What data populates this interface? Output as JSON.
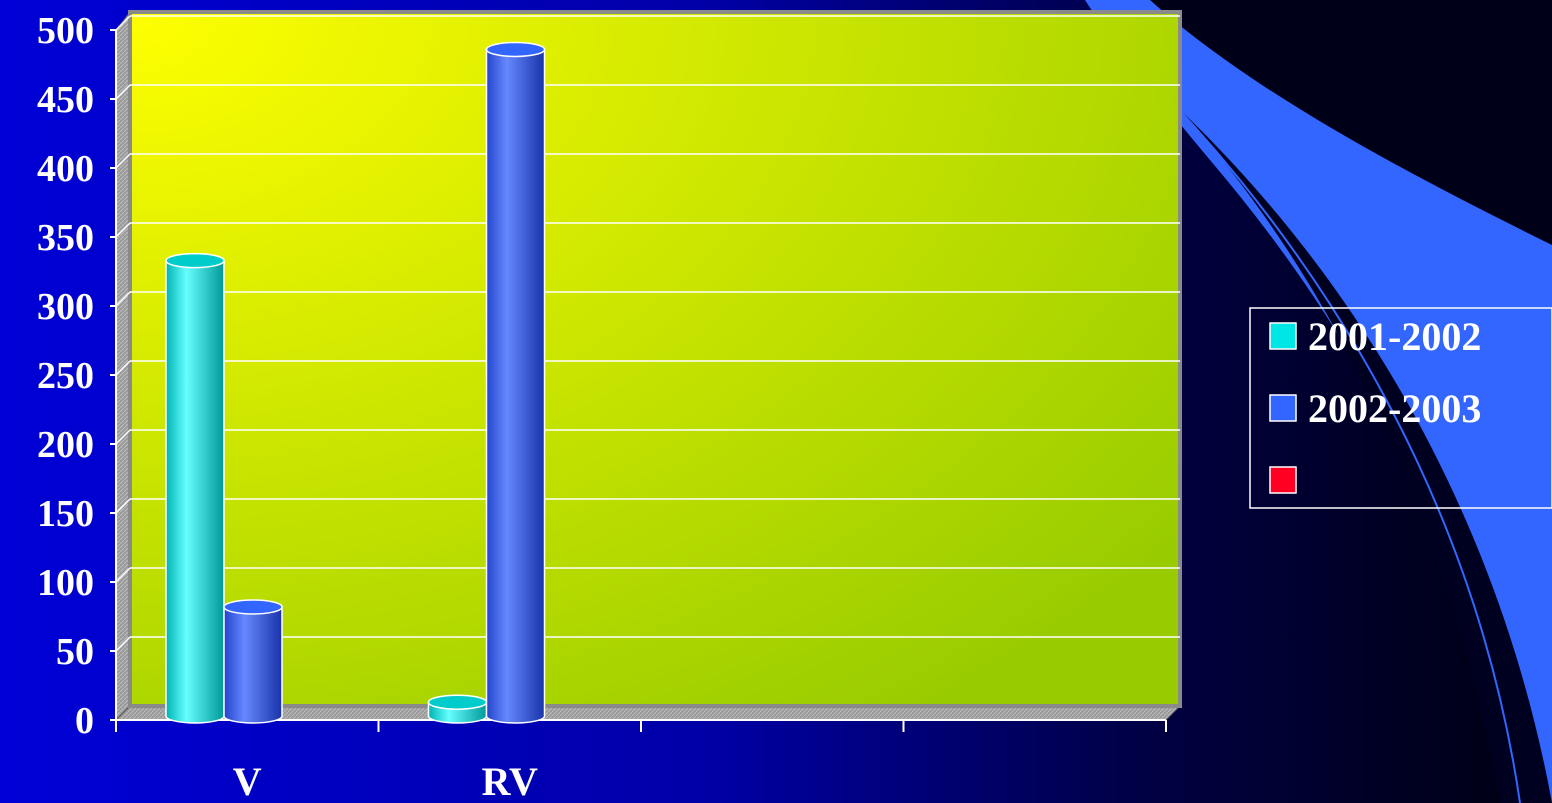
{
  "chart_data": {
    "type": "bar",
    "categories": [
      "V",
      "RV",
      "",
      ""
    ],
    "series": [
      {
        "name": "2001-2002",
        "color": "#00e5e5",
        "values": [
          330,
          10,
          null,
          null
        ]
      },
      {
        "name": "2002-2003",
        "color": "#3366ff",
        "values": [
          79,
          483,
          null,
          null
        ]
      },
      {
        "name": "",
        "color": "#ff0022",
        "values": [
          null,
          null,
          null,
          null
        ]
      }
    ],
    "yticks": [
      "0",
      "50",
      "100",
      "150",
      "200",
      "250",
      "300",
      "350",
      "400",
      "450",
      "500"
    ],
    "ylim": [
      0,
      500
    ],
    "grid": true,
    "legend_position": "right",
    "title": "",
    "xlabel": "",
    "ylabel": ""
  },
  "colors": {
    "background": "#0000cc",
    "plot_area_light": "#ffff00",
    "plot_area_dark": "#99cc00",
    "decor_accent": "#3366ff"
  }
}
